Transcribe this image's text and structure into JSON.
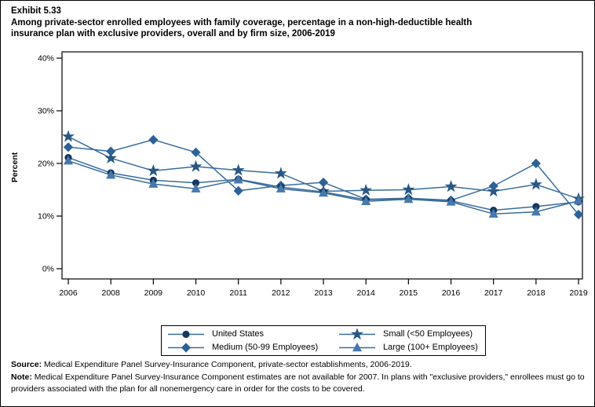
{
  "header": {
    "exhibit": "Exhibit 5.33",
    "title_line1": "Among private-sector enrolled employees with family coverage, percentage in a non-high-deductible health",
    "title_line2": "insurance plan with exclusive providers, overall and by firm size, 2006-2019"
  },
  "chart_data": {
    "type": "line",
    "title": "Among private-sector enrolled employees with family coverage, percentage in a non-high-deductible health insurance plan with exclusive providers, overall and by firm size, 2006-2019",
    "xlabel": "",
    "ylabel": "Percent",
    "ylim": [
      0,
      40
    ],
    "y_tick_labels": [
      "40%",
      "30%",
      "20%",
      "10%",
      "0%"
    ],
    "categories": [
      "2006",
      "2008",
      "2009",
      "2010",
      "2011",
      "2012",
      "2013",
      "2014",
      "2015",
      "2016",
      "2017",
      "2018",
      "2019"
    ],
    "grid": false,
    "legend_position": "bottom",
    "line_color": "#3A6D9E",
    "axis_color": "#000000",
    "series": [
      {
        "name": "Small (<50 Employees)",
        "marker": "star",
        "color": "#2A5784",
        "values": [
          25.1,
          21.0,
          18.6,
          19.4,
          18.7,
          18.1,
          14.7,
          14.9,
          15.0,
          15.6,
          14.7,
          16.0,
          13.3
        ]
      },
      {
        "name": "Medium (50-99 Employees)",
        "marker": "diamond",
        "color": "#2E6296",
        "values": [
          23.1,
          22.3,
          24.5,
          22.1,
          14.8,
          15.8,
          16.4,
          13.2,
          13.4,
          13.0,
          15.7,
          20.0,
          10.3
        ]
      },
      {
        "name": "United States",
        "marker": "circle",
        "color": "#17375E",
        "values": [
          21.1,
          18.2,
          16.8,
          16.3,
          17.0,
          15.5,
          14.6,
          13.1,
          13.3,
          12.9,
          11.1,
          11.8,
          12.7
        ]
      },
      {
        "name": "Large (100+ Employees)",
        "marker": "triangle",
        "color": "#4678AC",
        "values": [
          20.5,
          17.8,
          16.1,
          15.2,
          16.9,
          15.2,
          14.4,
          12.8,
          13.2,
          12.7,
          10.4,
          10.8,
          12.9
        ]
      }
    ]
  },
  "legend": {
    "items": [
      {
        "label": "United States",
        "marker": "circle"
      },
      {
        "label": "Medium (50-99 Employees)",
        "marker": "diamond"
      },
      {
        "label": "Small (<50 Employees)",
        "marker": "star"
      },
      {
        "label": "Large (100+ Employees)",
        "marker": "triangle"
      }
    ]
  },
  "footer": {
    "source_label": "Source:",
    "source_text": "Medical Expenditure Panel Survey-Insurance Component, private-sector establishments, 2006-2019.",
    "note_label": "Note:",
    "note_text": "Medical Expenditure Panel Survey-Insurance Component estimates are not available for 2007. In plans with \"exclusive providers,\" enrollees must go to providers associated with the plan for all nonemergency care in order for the costs to be covered."
  }
}
